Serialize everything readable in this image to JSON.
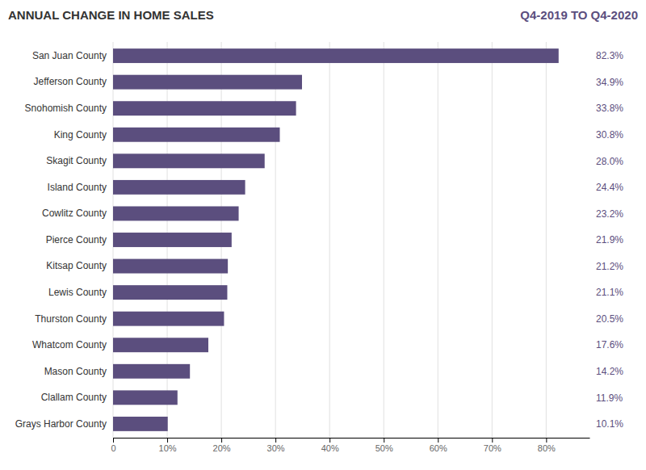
{
  "chart_data": {
    "type": "bar",
    "orientation": "horizontal",
    "title": "ANNUAL CHANGE IN HOME SALES",
    "subtitle": "Q4-2019 TO Q4-2020",
    "categories": [
      "San Juan County",
      "Jefferson County",
      "Snohomish County",
      "King County",
      "Skagit County",
      "Island County",
      "Cowlitz County",
      "Pierce County",
      "Kitsap County",
      "Lewis County",
      "Thurston County",
      "Whatcom County",
      "Mason County",
      "Clallam County",
      "Grays Harbor County"
    ],
    "values": [
      82.3,
      34.9,
      33.8,
      30.8,
      28.0,
      24.4,
      23.2,
      21.9,
      21.2,
      21.1,
      20.5,
      17.6,
      14.2,
      11.9,
      10.1
    ],
    "value_labels": [
      "82.3%",
      "34.9%",
      "33.8%",
      "30.8%",
      "28.0%",
      "24.4%",
      "23.2%",
      "21.9%",
      "21.2%",
      "21.1%",
      "20.5%",
      "17.6%",
      "14.2%",
      "11.9%",
      "10.1%"
    ],
    "data_labels": true,
    "color": "#5b4e7e",
    "xlim": [
      0,
      88
    ],
    "xticks": [
      0,
      {
        "value": 10,
        "label": "10%"
      },
      {
        "value": 20,
        "label": "20%"
      },
      {
        "value": 30,
        "label": "30%"
      },
      {
        "value": 40,
        "label": "40%"
      },
      {
        "value": 50,
        "label": "50%"
      },
      {
        "value": 60,
        "label": "60%"
      },
      {
        "value": 70,
        "label": "70%"
      },
      {
        "value": 80,
        "label": "80%"
      }
    ],
    "grid": true
  }
}
